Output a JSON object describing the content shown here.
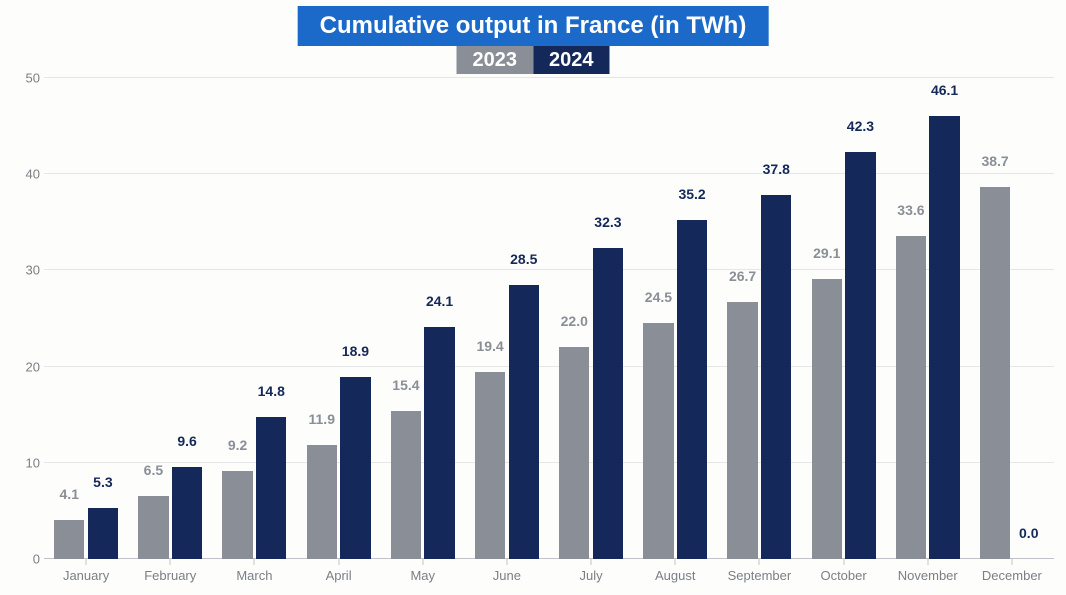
{
  "chart": {
    "type": "grouped-bar",
    "title": "Cumulative output in France (in TWh)",
    "title_bg": "#1b6ac9",
    "title_color": "#ffffff",
    "title_fontsize": 24,
    "background_color": "#fdfdfb",
    "legend": [
      {
        "label": "2023",
        "bg": "#8a8f97",
        "text": "#ffffff"
      },
      {
        "label": "2024",
        "bg": "#14285a",
        "text": "#ffffff"
      }
    ],
    "y_axis": {
      "min": 0,
      "max": 50,
      "ticks": [
        0,
        10,
        20,
        30,
        40,
        50
      ],
      "tick_color": "#7a7f87",
      "grid_color": "#e4e6ea",
      "fontsize": 13
    },
    "x_axis": {
      "tick_color": "#7a7f87",
      "fontsize": 13
    },
    "categories": [
      "January",
      "February",
      "March",
      "April",
      "May",
      "June",
      "July",
      "August",
      "September",
      "October",
      "November",
      "December"
    ],
    "series": [
      {
        "name": "2023",
        "color": "#8a8f97",
        "label_color": "#8a8f97",
        "values": [
          4.1,
          6.5,
          9.2,
          11.9,
          15.4,
          19.4,
          22.0,
          24.5,
          26.7,
          29.1,
          33.6,
          38.7
        ]
      },
      {
        "name": "2024",
        "color": "#14285a",
        "label_color": "#14285a",
        "values": [
          5.3,
          9.6,
          14.8,
          18.9,
          24.1,
          28.5,
          32.3,
          35.2,
          37.8,
          42.3,
          46.1,
          0.0
        ]
      }
    ],
    "bar_label_fontsize": 14,
    "bar_width_ratio": 0.36,
    "group_gap_ratio": 0.04
  }
}
